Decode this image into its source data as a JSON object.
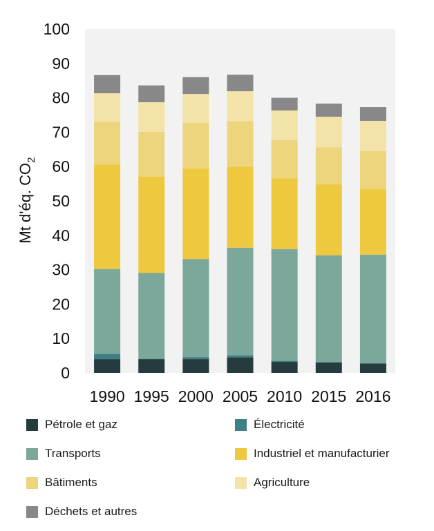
{
  "chart_data": {
    "type": "bar",
    "stacked": true,
    "ylabel": "Mt d'éq. CO",
    "ylabel_subscript": "2",
    "ylim": [
      0,
      100
    ],
    "yticks": [
      0,
      10,
      20,
      30,
      40,
      50,
      60,
      70,
      80,
      90,
      100
    ],
    "categories": [
      "1990",
      "1995",
      "2000",
      "2005",
      "2010",
      "2015",
      "2016"
    ],
    "grid": false,
    "plot_background": "#f2f2f2",
    "legend_position": "bottom",
    "series": [
      {
        "name": "Pétrole et gaz",
        "color": "#253b3d",
        "values": [
          4.0,
          4.0,
          4.0,
          4.5,
          3.2,
          3.0,
          2.7
        ]
      },
      {
        "name": "Électricité",
        "color": "#3f7f86",
        "values": [
          1.5,
          0.1,
          0.6,
          0.6,
          0.3,
          0.1,
          0.1
        ]
      },
      {
        "name": "Transports",
        "color": "#7ba89b",
        "values": [
          24.7,
          25.0,
          28.5,
          31.3,
          32.5,
          31.1,
          31.6
        ]
      },
      {
        "name": "Industriel et manufacturier",
        "color": "#eec940",
        "values": [
          30.4,
          28.0,
          26.3,
          23.6,
          20.6,
          20.6,
          19.0
        ]
      },
      {
        "name": "Bâtiments",
        "color": "#ecd57c",
        "values": [
          12.4,
          13.0,
          13.3,
          13.2,
          11.1,
          10.8,
          11.1
        ]
      },
      {
        "name": "Agriculture",
        "color": "#f3e3a8",
        "values": [
          8.3,
          8.6,
          8.4,
          8.7,
          8.6,
          8.9,
          8.8
        ]
      },
      {
        "name": "Déchets et autres",
        "color": "#888888",
        "values": [
          5.3,
          4.9,
          4.9,
          4.8,
          3.7,
          3.8,
          4.0
        ]
      }
    ]
  }
}
